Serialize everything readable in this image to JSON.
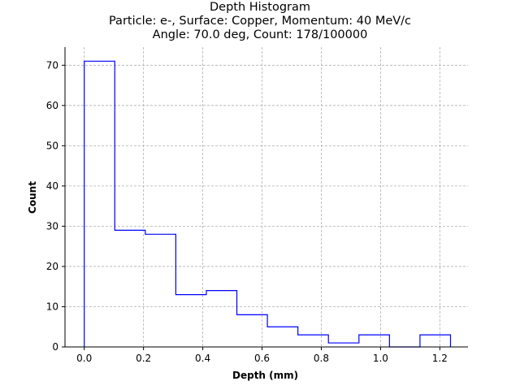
{
  "chart_data": {
    "type": "histogram",
    "title": "Depth Histogram",
    "subtitle_lines": [
      "Particle: e-, Surface: Copper, Momentum: 40 MeV/c",
      "Angle: 70.0 deg, Count: 178/100000"
    ],
    "xlabel": "Depth (mm)",
    "ylabel": "Count",
    "xlim": [
      -0.065,
      1.295
    ],
    "ylim": [
      0,
      74.5
    ],
    "x_ticks": [
      0.0,
      0.2,
      0.4,
      0.6,
      0.8,
      1.0,
      1.2
    ],
    "x_tick_labels": [
      "0.0",
      "0.2",
      "0.4",
      "0.6",
      "0.8",
      "1.0",
      "1.2"
    ],
    "y_ticks": [
      0,
      10,
      20,
      30,
      40,
      50,
      60,
      70
    ],
    "y_tick_labels": [
      "0",
      "10",
      "20",
      "30",
      "40",
      "50",
      "60",
      "70"
    ],
    "grid": true,
    "line_color": "#0000ff",
    "bin_edges": [
      0.0,
      0.103,
      0.206,
      0.309,
      0.412,
      0.515,
      0.618,
      0.721,
      0.824,
      0.927,
      1.03,
      1.133,
      1.236
    ],
    "counts": [
      71,
      29,
      28,
      13,
      14,
      8,
      5,
      3,
      1,
      3,
      0,
      3
    ]
  }
}
